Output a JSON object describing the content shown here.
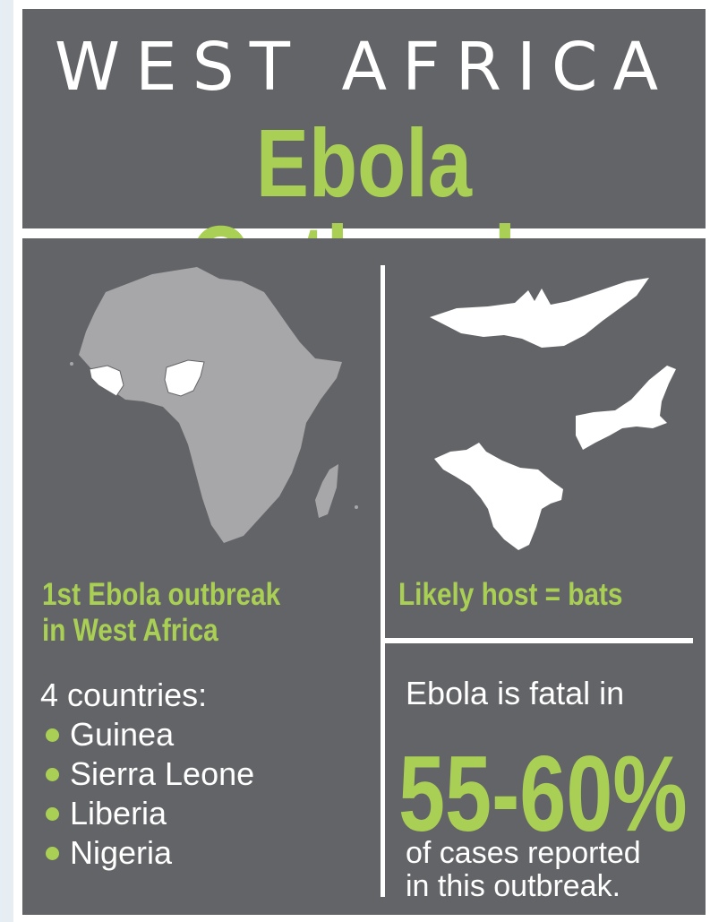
{
  "header": {
    "title_line1": "WEST AFRICA",
    "title_line2": "Ebola Outbreak"
  },
  "left": {
    "heading_line1": "1st Ebola outbreak",
    "heading_line2": "in West Africa",
    "countries_label": "4 countries:",
    "countries": [
      "Guinea",
      "Sierra Leone",
      "Liberia",
      "Nigeria"
    ]
  },
  "right": {
    "host_heading": "Likely host = bats",
    "fatal_intro": "Ebola is fatal in",
    "fatal_pct": "55-60%",
    "fatal_outro_line1": "of cases reported",
    "fatal_outro_line2": "in this outbreak."
  },
  "colors": {
    "panel_bg": "#636467",
    "accent_green": "#a9cf54",
    "africa_gray": "#a7a7a9",
    "highlight_white": "#ffffff"
  },
  "icons": [
    "africa-map",
    "bat-silhouette"
  ]
}
